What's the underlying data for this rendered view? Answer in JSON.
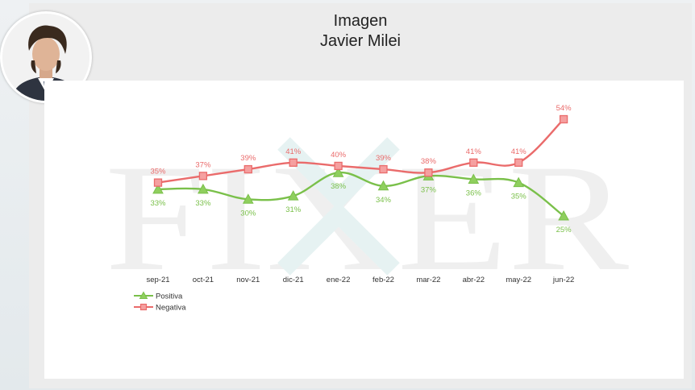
{
  "header": {
    "title_line1": "Imagen",
    "title_line2": "Javier Milei"
  },
  "watermark": {
    "text": "FIXER"
  },
  "colors": {
    "positiva": "#7ac04a",
    "positiva_fill": "#8fcf5e",
    "negativa": "#ea6b6b",
    "negativa_fill": "#f5a0a0",
    "watermark": "#efefef",
    "watermark_x": "#e6f2f2"
  },
  "chart_data": {
    "type": "line",
    "categories": [
      "sep-21",
      "oct-21",
      "nov-21",
      "dic-21",
      "ene-22",
      "feb-22",
      "mar-22",
      "abr-22",
      "may-22",
      "jun-22"
    ],
    "series": [
      {
        "name": "Positiva",
        "values": [
          33,
          33,
          30,
          31,
          38,
          34,
          37,
          36,
          35,
          25
        ],
        "labels": [
          "33%",
          "33%",
          "30%",
          "31%",
          "38%",
          "34%",
          "37%",
          "36%",
          "35%",
          "25%"
        ]
      },
      {
        "name": "Negativa",
        "values": [
          35,
          37,
          39,
          41,
          40,
          39,
          38,
          41,
          41,
          54
        ],
        "labels": [
          "35%",
          "37%",
          "39%",
          "41%",
          "40%",
          "39%",
          "38%",
          "41%",
          "41%",
          "54%"
        ]
      }
    ],
    "legend_position": "bottom-left",
    "grid": false
  }
}
